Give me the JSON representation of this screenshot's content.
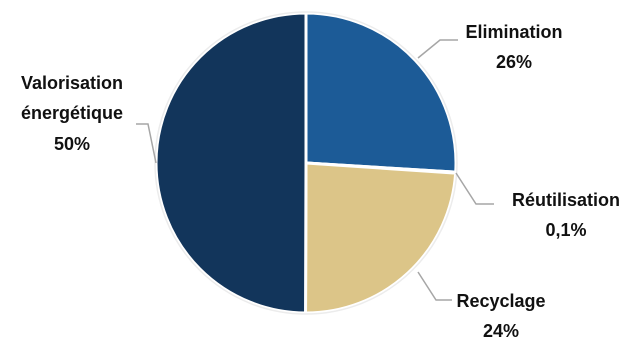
{
  "chart_data": {
    "type": "pie",
    "title": "",
    "slices": [
      {
        "name": "Elimination",
        "value": 26,
        "value_label": "26%",
        "color": "#1c5b97"
      },
      {
        "name": "Réutilisation",
        "value": 0.1,
        "value_label": "0,1%",
        "color": "#c8c8c8"
      },
      {
        "name": "Recyclage",
        "value": 24,
        "value_label": "24%",
        "color": "#dcc588"
      },
      {
        "name": "Valorisation énergétique",
        "value": 50,
        "value_label": "50%",
        "color": "#12355b"
      }
    ],
    "legend": "none",
    "label_position": "outside with leader lines"
  }
}
